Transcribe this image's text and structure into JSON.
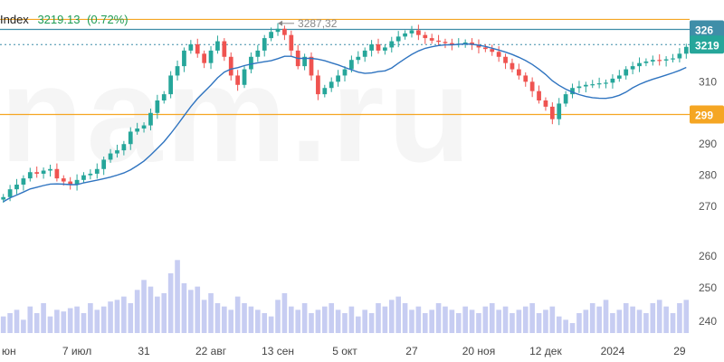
{
  "header": {
    "name": "Index",
    "value": "3219.13",
    "change": "(0.72%)"
  },
  "watermark": "nam.ru",
  "colors": {
    "up": "#26a69a",
    "down": "#ef5350",
    "ma": "#2f74c0",
    "level": "#f5a623",
    "volume": "#c7cdf2",
    "teal_tag": "#3f8ea8",
    "green_tag": "#26a69a",
    "dotted": "#3f8ea8"
  },
  "annotation": {
    "label": "3287,32",
    "value": 3287.32
  },
  "price_tags": [
    {
      "label": "326",
      "value": 3268,
      "color": "#3f8ea8"
    },
    {
      "label": "3219",
      "value": 3219.13,
      "color": "#26a69a"
    },
    {
      "label": "299",
      "value": 2995,
      "color": "#f5a623"
    }
  ],
  "chart_data": {
    "type": "candlestick",
    "y_ticks": [
      {
        "label": "310",
        "value": 3100
      },
      {
        "label": "290",
        "value": 2900
      },
      {
        "label": "280",
        "value": 2800
      },
      {
        "label": "270",
        "value": 2700
      },
      {
        "label": "260",
        "value": 2600
      },
      {
        "label": "250",
        "value": 2500
      },
      {
        "label": "240",
        "value": 2400
      }
    ],
    "x_ticks": [
      "юн",
      "7 июл",
      "31",
      "22 авг",
      "13 сен",
      "5 окт",
      "27",
      "20 ноя",
      "12 дек",
      "2024",
      "29"
    ],
    "x_tick_index": [
      0,
      11,
      21,
      31,
      41,
      51,
      61,
      71,
      81,
      91,
      101
    ],
    "levels": [
      3300,
      3268,
      2995
    ],
    "dotted_level": 3219.13,
    "close": [
      2730,
      2755,
      2770,
      2790,
      2810,
      2805,
      2815,
      2820,
      2790,
      2780,
      2770,
      2785,
      2800,
      2805,
      2820,
      2850,
      2870,
      2880,
      2900,
      2940,
      2950,
      2960,
      3000,
      3040,
      3060,
      3120,
      3150,
      3200,
      3220,
      3190,
      3160,
      3200,
      3230,
      3180,
      3120,
      3090,
      3140,
      3180,
      3200,
      3240,
      3260,
      3270,
      3250,
      3200,
      3150,
      3180,
      3120,
      3060,
      3080,
      3100,
      3120,
      3140,
      3170,
      3180,
      3200,
      3220,
      3200,
      3210,
      3230,
      3245,
      3255,
      3265,
      3250,
      3240,
      3232,
      3228,
      3224,
      3220,
      3222,
      3226,
      3218,
      3210,
      3205,
      3196,
      3180,
      3160,
      3140,
      3120,
      3100,
      3070,
      3040,
      3020,
      2980,
      3030,
      3060,
      3080,
      3085,
      3090,
      3092,
      3095,
      3097,
      3110,
      3120,
      3140,
      3150,
      3160,
      3165,
      3170,
      3168,
      3172,
      3175,
      3190,
      3212
    ],
    "volume": [
      2430,
      2440,
      2450,
      2420,
      2460,
      2440,
      2470,
      2430,
      2450,
      2445,
      2455,
      2460,
      2440,
      2470,
      2450,
      2460,
      2475,
      2480,
      2490,
      2470,
      2510,
      2540,
      2520,
      2490,
      2500,
      2560,
      2600,
      2530,
      2510,
      2520,
      2480,
      2500,
      2470,
      2460,
      2450,
      2490,
      2470,
      2460,
      2450,
      2440,
      2430,
      2480,
      2500,
      2460,
      2450,
      2470,
      2440,
      2450,
      2460,
      2470,
      2450,
      2440,
      2460,
      2430,
      2450,
      2440,
      2470,
      2460,
      2480,
      2490,
      2470,
      2450,
      2460,
      2440,
      2450,
      2470,
      2460,
      2450,
      2440,
      2460,
      2450,
      2440,
      2460,
      2470,
      2450,
      2460,
      2440,
      2450,
      2460,
      2470,
      2440,
      2450,
      2460,
      2430,
      2420,
      2410,
      2440,
      2450,
      2470,
      2460,
      2480,
      2440,
      2450,
      2470,
      2460,
      2450,
      2440,
      2470,
      2480,
      2460,
      2440,
      2470,
      2480
    ]
  }
}
